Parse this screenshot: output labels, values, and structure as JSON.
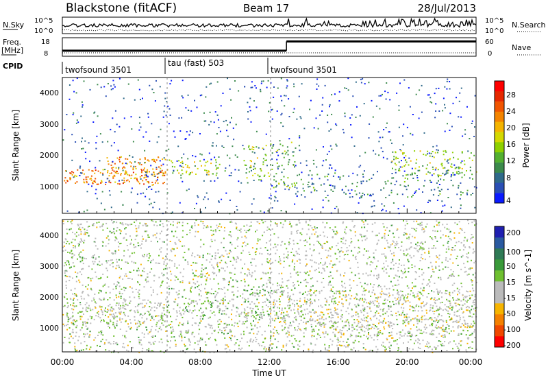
{
  "header": {
    "station": "Blackstone (fitACF)",
    "beam": "Beam 17",
    "date": "28/Jul/2013"
  },
  "chart_data": [
    {
      "type": "line",
      "name_left": "N.Sky",
      "name_right": "N.Search",
      "y_ticks_left": [
        "10^5",
        "10^0"
      ],
      "y_ticks_right": [
        "10^5",
        "10^0"
      ],
      "x_range_hours": [
        0,
        24
      ]
    },
    {
      "type": "line",
      "ylabel_top": "Freq.",
      "ylabel_unit": "[MHz]",
      "y_ticks_left": [
        "18",
        "8"
      ],
      "right_label": "Nave",
      "y_ticks_right": [
        "60",
        "0"
      ],
      "freq_segments": [
        {
          "start": 0,
          "end": 13,
          "value": 11.0
        },
        {
          "start": 13,
          "end": 24,
          "value": 16.0
        }
      ],
      "nave_segments": [
        {
          "start": 0,
          "end": 13,
          "value": 5
        },
        {
          "start": 13,
          "end": 24,
          "value": 5
        }
      ]
    },
    {
      "type": "table",
      "label": "CPID",
      "programs": [
        {
          "start": 0,
          "name": "twofsound 3501"
        },
        {
          "start": 6,
          "name": "tau (fast) 503"
        },
        {
          "start": 12,
          "name": "twofsound 3501"
        }
      ]
    },
    {
      "type": "heatmap",
      "ylabel": "Slant Range [km]",
      "ylim": [
        180,
        4500
      ],
      "y_ticks": [
        1000,
        2000,
        3000,
        4000
      ],
      "colorbar_label": "Power [dB]",
      "colorbar_ticks": [
        "4",
        "8",
        "12",
        "16",
        "20",
        "24",
        "28"
      ],
      "colorbar_colors": [
        "#0a1aff",
        "#2a4fb5",
        "#2f6a8a",
        "#3c8a4c",
        "#53b030",
        "#8ed000",
        "#d4d800",
        "#f4b400",
        "#f48400",
        "#f15500",
        "#e62800",
        "#ff0000"
      ],
      "echo_regions": [
        {
          "t0": 0.0,
          "t1": 6.0,
          "r0": 1100,
          "r1": 1600,
          "level": 0.75
        },
        {
          "t0": 2.5,
          "t1": 6.0,
          "r0": 1400,
          "r1": 2000,
          "level": 0.7
        },
        {
          "t0": 6.0,
          "t1": 9.5,
          "r0": 1400,
          "r1": 1900,
          "level": 0.5
        },
        {
          "t0": 10.5,
          "t1": 12.0,
          "r0": 1200,
          "r1": 2400,
          "level": 0.45
        },
        {
          "t0": 12.0,
          "t1": 13.5,
          "r0": 1000,
          "r1": 2500,
          "level": 0.4
        },
        {
          "t0": 13.0,
          "t1": 24.0,
          "r0": 700,
          "r1": 1500,
          "level": 0.25
        },
        {
          "t0": 19.0,
          "t1": 24.0,
          "r0": 1400,
          "r1": 2200,
          "level": 0.45
        },
        {
          "t0": 0.0,
          "t1": 24.0,
          "r0": 180,
          "r1": 4500,
          "level": 0.12
        }
      ]
    },
    {
      "type": "heatmap",
      "ylabel": "Slant Range [km]",
      "ylim": [
        180,
        4500
      ],
      "y_ticks": [
        1000,
        2000,
        3000,
        4000
      ],
      "colorbar_label": "Velocity [m s^-1]",
      "colorbar_ticks": [
        "200",
        "100",
        "50",
        "15",
        "-15",
        "-50",
        "-100",
        "-200"
      ],
      "colorbar_colors": [
        "#1f1fb0",
        "#2a5aa0",
        "#2f7a55",
        "#3a9a3a",
        "#6fc030",
        "#bbbbbb",
        "#bbbbbb",
        "#f6b400",
        "#f48000",
        "#f04800",
        "#ff0000"
      ],
      "echo_regions": [
        {
          "t0": 0.0,
          "t1": 6.0,
          "r0": 1100,
          "r1": 1800,
          "velocity": -10
        },
        {
          "t0": 6.0,
          "t1": 9.5,
          "r0": 1400,
          "r1": 1900,
          "velocity": 40
        },
        {
          "t0": 10.5,
          "t1": 12.0,
          "r0": 1200,
          "r1": 2400,
          "velocity": 30
        },
        {
          "t0": 12.0,
          "t1": 24.0,
          "r0": 700,
          "r1": 2200,
          "velocity": -20
        },
        {
          "t0": 0.0,
          "t1": 24.0,
          "r0": 180,
          "r1": 4500,
          "velocity": 0
        }
      ]
    }
  ],
  "x_axis": {
    "label": "Time UT",
    "ticks": [
      "00:00",
      "04:00",
      "08:00",
      "12:00",
      "16:00",
      "20:00",
      "00:00"
    ]
  }
}
